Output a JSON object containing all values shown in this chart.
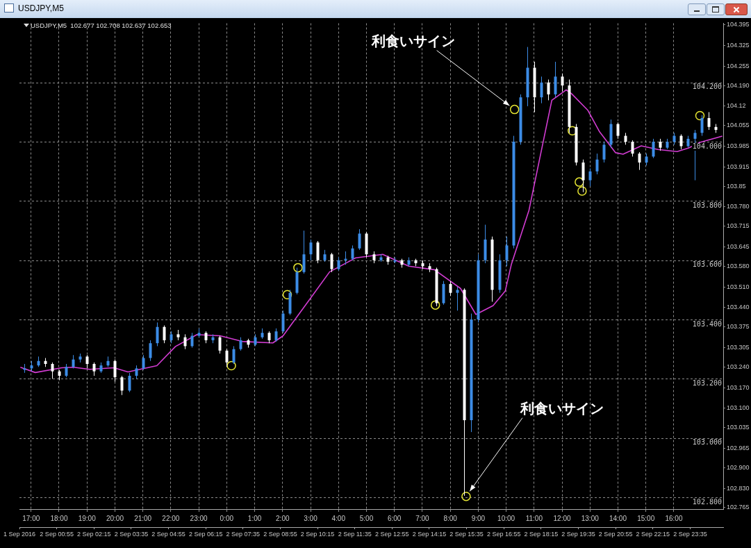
{
  "chart_data": {
    "type": "candlestick",
    "title": "USDJPY,M5",
    "subtitle": "USDJPY,M5  102.677 102.708 102.637 102.653",
    "xlim": [
      "2016-09-01T23:35",
      "2016-09-03T00:46"
    ],
    "xticks": [
      {
        "value": "2016-09-01T23:35",
        "label": "1 Sep 2016"
      },
      {
        "value": "2016-09-02T00:55",
        "label": "2 Sep 00:55"
      },
      {
        "value": "2016-09-02T02:15",
        "label": "2 Sep 02:15"
      },
      {
        "value": "2016-09-02T03:35",
        "label": "2 Sep 03:35"
      },
      {
        "value": "2016-09-02T04:55",
        "label": "2 Sep 04:55"
      },
      {
        "value": "2016-09-02T06:15",
        "label": "2 Sep 06:15"
      },
      {
        "value": "2016-09-02T07:35",
        "label": "2 Sep 07:35"
      },
      {
        "value": "2016-09-02T08:55",
        "label": "2 Sep 08:55"
      },
      {
        "value": "2016-09-02T10:15",
        "label": "2 Sep 10:15"
      },
      {
        "value": "2016-09-02T11:35",
        "label": "2 Sep 11:35"
      },
      {
        "value": "2016-09-02T12:55",
        "label": "2 Sep 12:55"
      },
      {
        "value": "2016-09-02T14:15",
        "label": "2 Sep 14:15"
      },
      {
        "value": "2016-09-02T15:35",
        "label": "2 Sep 15:35"
      },
      {
        "value": "2016-09-02T16:55",
        "label": "2 Sep 16:55"
      },
      {
        "value": "2016-09-02T18:15",
        "label": "2 Sep 18:15"
      },
      {
        "value": "2016-09-02T19:35",
        "label": "2 Sep 19:35"
      },
      {
        "value": "2016-09-02T20:55",
        "label": "2 Sep 20:55"
      },
      {
        "value": "2016-09-02T22:15",
        "label": "2 Sep 22:15"
      },
      {
        "value": "2016-09-02T23:35",
        "label": "2 Sep 23:35"
      }
    ],
    "x2lim": [
      "2016-09-01T16:35",
      "2016-09-02T17:46"
    ],
    "x2ticks": [
      {
        "value": "2016-09-01T17:00",
        "label": "17:00"
      },
      {
        "value": "2016-09-01T18:00",
        "label": "18:00"
      },
      {
        "value": "2016-09-01T19:00",
        "label": "19:00"
      },
      {
        "value": "2016-09-01T20:00",
        "label": "20:00"
      },
      {
        "value": "2016-09-01T21:00",
        "label": "21:00"
      },
      {
        "value": "2016-09-01T22:00",
        "label": "22:00"
      },
      {
        "value": "2016-09-01T23:00",
        "label": "23:00"
      },
      {
        "value": "2016-09-02T00:00",
        "label": "0:00"
      },
      {
        "value": "2016-09-02T01:00",
        "label": "1:00"
      },
      {
        "value": "2016-09-02T02:00",
        "label": "2:00"
      },
      {
        "value": "2016-09-02T03:00",
        "label": "3:00"
      },
      {
        "value": "2016-09-02T04:00",
        "label": "4:00"
      },
      {
        "value": "2016-09-02T05:00",
        "label": "5:00"
      },
      {
        "value": "2016-09-02T06:00",
        "label": "6:00"
      },
      {
        "value": "2016-09-02T07:00",
        "label": "7:00"
      },
      {
        "value": "2016-09-02T08:00",
        "label": "8:00"
      },
      {
        "value": "2016-09-02T09:00",
        "label": "9:00"
      },
      {
        "value": "2016-09-02T10:00",
        "label": "10:00"
      },
      {
        "value": "2016-09-02T11:00",
        "label": "11:00"
      },
      {
        "value": "2016-09-02T12:00",
        "label": "12:00"
      },
      {
        "value": "2016-09-02T13:00",
        "label": "13:00"
      },
      {
        "value": "2016-09-02T14:00",
        "label": "14:00"
      },
      {
        "value": "2016-09-02T15:00",
        "label": "15:00"
      },
      {
        "value": "2016-09-02T16:00",
        "label": "16:00"
      }
    ],
    "ylim": [
      102.76,
      104.4
    ],
    "yticks": [
      104.395,
      104.325,
      104.255,
      {
        "value": 104.19,
        "label": "104.190"
      },
      104.12,
      104.055,
      103.985,
      103.915,
      103.85,
      {
        "value": 103.78,
        "label": "103.780"
      },
      103.715,
      103.645,
      {
        "value": 103.58,
        "label": "103.580"
      },
      {
        "value": 103.51,
        "label": "103.510"
      },
      {
        "value": 103.44,
        "label": "103.440"
      },
      103.375,
      103.305,
      {
        "value": 103.24,
        "label": "103.240"
      },
      {
        "value": 103.17,
        "label": "103.170"
      },
      {
        "value": 103.1,
        "label": "103.100"
      },
      103.035,
      102.965,
      {
        "value": 102.9,
        "label": "102.900"
      },
      {
        "value": 102.83,
        "label": "102.830"
      },
      102.765
    ],
    "grid": "x",
    "ref_lines": [
      {
        "axis": "y",
        "value": 104.2,
        "label": "104.200",
        "color": "#8c8c8c",
        "line_style": "dashed"
      },
      {
        "axis": "y",
        "value": 104.0,
        "label": "104.000",
        "color": "#8c8c8c",
        "line_style": "dashed"
      },
      {
        "axis": "y",
        "value": 103.8,
        "label": "103.800",
        "color": "#8c8c8c",
        "line_style": "dashed"
      },
      {
        "axis": "y",
        "value": 103.6,
        "label": "103.600",
        "color": "#8c8c8c",
        "line_style": "dashed"
      },
      {
        "axis": "y",
        "value": 103.4,
        "label": "103.400",
        "color": "#8c8c8c",
        "line_style": "dashed"
      },
      {
        "axis": "y",
        "value": 103.2,
        "label": "103.200",
        "color": "#8c8c8c",
        "line_style": "dashed"
      },
      {
        "axis": "y",
        "value": 103.0,
        "label": "103.000",
        "color": "#8c8c8c",
        "line_style": "dashed"
      },
      {
        "axis": "y",
        "value": 102.8,
        "label": "102.800",
        "color": "#8c8c8c",
        "line_style": "dashed"
      }
    ],
    "annotations": [
      {
        "text": "利食いサイン",
        "x": "2016-09-02T17:18",
        "y": 104.109
      },
      {
        "text": "利食いサイン",
        "x": "2016-09-02T15:34",
        "y": 102.803
      }
    ],
    "series": [
      {
        "type": "line",
        "color": "#d23cd2",
        "line_style": "solid",
        "x": [
          "2016-09-01T23:37",
          "2016-09-02T00:09",
          "2016-09-02T01:06",
          "2016-09-02T01:31",
          "2016-09-02T02:06",
          "2016-09-02T02:58",
          "2016-09-02T03:28",
          "2016-09-02T04:30",
          "2016-09-02T05:10",
          "2016-09-02T05:56",
          "2016-09-02T06:46",
          "2016-09-02T07:33",
          "2016-09-02T08:39",
          "2016-09-02T09:01",
          "2016-09-02T09:59",
          "2016-09-02T10:41",
          "2016-09-02T11:37",
          "2016-09-02T12:35",
          "2016-09-02T13:31",
          "2016-09-02T14:26",
          "2016-09-02T15:22",
          "2016-09-02T15:55",
          "2016-09-02T16:32",
          "2016-09-02T16:58",
          "2016-09-02T17:11",
          "2016-09-02T17:49",
          "2016-09-02T18:38",
          "2016-09-02T19:09",
          "2016-09-02T19:20",
          "2016-09-02T19:55",
          "2016-09-02T20:20",
          "2016-09-02T20:55",
          "2016-09-02T21:11",
          "2016-09-02T21:50",
          "2016-09-02T22:26",
          "2016-09-02T23:07",
          "2016-09-02T23:32",
          "2016-09-02T23:56",
          "2016-09-03T00:44"
        ],
        "values": [
          103.239,
          103.221,
          103.237,
          103.239,
          103.232,
          103.237,
          103.223,
          103.244,
          103.309,
          103.349,
          103.345,
          103.326,
          103.321,
          103.345,
          103.47,
          103.561,
          103.608,
          103.62,
          103.58,
          103.568,
          103.505,
          103.417,
          103.447,
          103.496,
          103.585,
          103.769,
          104.14,
          104.175,
          104.163,
          104.107,
          104.035,
          103.963,
          103.958,
          103.986,
          103.974,
          103.967,
          103.979,
          103.998,
          104.019
        ]
      },
      {
        "type": "scatter",
        "color": "#e6e632",
        "marker": "circle",
        "x": [
          "2016-09-02T07:10",
          "2016-09-02T09:10",
          "2016-09-02T09:33",
          "2016-09-02T14:28",
          "2016-09-02T15:34",
          "2016-09-02T17:18",
          "2016-09-02T19:22",
          "2016-09-02T19:37",
          "2016-09-02T19:43",
          "2016-09-02T23:56"
        ],
        "values": [
          103.244,
          103.484,
          103.575,
          103.449,
          102.803,
          104.109,
          104.037,
          103.864,
          103.834,
          104.088
        ]
      },
      {
        "type": "candlestick",
        "color": "#3c8ce6",
        "x": [
          "2016-09-01T23:45",
          "2016-09-02T00:00",
          "2016-09-02T00:15",
          "2016-09-02T01:15",
          "2016-09-02T01:30",
          "2016-09-02T01:45",
          "2016-09-02T02:30",
          "2016-09-02T02:45",
          "2016-09-02T03:30",
          "2016-09-02T03:45",
          "2016-09-02T04:00",
          "2016-09-02T04:15",
          "2016-09-02T04:30",
          "2016-09-02T05:00",
          "2016-09-02T05:45",
          "2016-09-02T06:00",
          "2016-09-02T06:30",
          "2016-09-02T07:15",
          "2016-09-02T07:30",
          "2016-09-02T08:00",
          "2016-09-02T08:15",
          "2016-09-02T08:45",
          "2016-09-02T09:00",
          "2016-09-02T09:15",
          "2016-09-02T09:30",
          "2016-09-02T09:45",
          "2016-09-02T10:00",
          "2016-09-02T10:30",
          "2016-09-02T11:00",
          "2016-09-02T11:15",
          "2016-09-02T11:30",
          "2016-09-02T11:45",
          "2016-09-02T12:30",
          "2016-09-02T13:00",
          "2016-09-02T13:30",
          "2016-09-02T14:45",
          "2016-09-02T15:15",
          "2016-09-02T15:45",
          "2016-09-02T16:00",
          "2016-09-02T16:15",
          "2016-09-02T16:45",
          "2016-09-02T17:00",
          "2016-09-02T17:15",
          "2016-09-02T17:30",
          "2016-09-02T17:45",
          "2016-09-02T18:15",
          "2016-09-02T18:45",
          "2016-09-02T20:00",
          "2016-09-02T20:15",
          "2016-09-02T20:30",
          "2016-09-02T20:45",
          "2016-09-02T22:00",
          "2016-09-02T22:15",
          "2016-09-02T22:45",
          "2016-09-02T23:00",
          "2016-09-02T23:30",
          "2016-09-02T23:45",
          "2016-09-03T00:00"
        ],
        "ohlc": [
          [
            103.23,
            103.25,
            103.22,
            103.235
          ],
          [
            103.235,
            103.26,
            103.225,
            103.245
          ],
          [
            103.245,
            103.275,
            103.24,
            103.26
          ],
          [
            103.21,
            103.25,
            103.205,
            103.24
          ],
          [
            103.24,
            103.28,
            103.235,
            103.265
          ],
          [
            103.265,
            103.285,
            103.255,
            103.275
          ],
          [
            103.225,
            103.255,
            103.22,
            103.245
          ],
          [
            103.245,
            103.275,
            103.24,
            103.26
          ],
          [
            103.16,
            103.22,
            103.155,
            103.21
          ],
          [
            103.21,
            103.245,
            103.2,
            103.235
          ],
          [
            103.235,
            103.28,
            103.23,
            103.27
          ],
          [
            103.27,
            103.33,
            103.26,
            103.32
          ],
          [
            103.32,
            103.39,
            103.31,
            103.375
          ],
          [
            103.33,
            103.36,
            103.32,
            103.35
          ],
          [
            103.31,
            103.355,
            103.305,
            103.345
          ],
          [
            103.345,
            103.37,
            103.34,
            103.355
          ],
          [
            103.33,
            103.35,
            103.32,
            103.34
          ],
          [
            103.255,
            103.31,
            103.25,
            103.3
          ],
          [
            103.3,
            103.34,
            103.295,
            103.33
          ],
          [
            103.315,
            103.35,
            103.31,
            103.34
          ],
          [
            103.34,
            103.37,
            103.335,
            103.355
          ],
          [
            103.33,
            103.37,
            103.325,
            103.36
          ],
          [
            103.36,
            103.43,
            103.355,
            103.42
          ],
          [
            103.42,
            103.5,
            103.415,
            103.49
          ],
          [
            103.49,
            103.575,
            103.485,
            103.56
          ],
          [
            103.56,
            103.7,
            103.555,
            103.62
          ],
          [
            103.62,
            103.67,
            103.6,
            103.66
          ],
          [
            103.6,
            103.635,
            103.595,
            103.62
          ],
          [
            103.57,
            103.61,
            103.565,
            103.6
          ],
          [
            103.6,
            103.63,
            103.585,
            103.605
          ],
          [
            103.605,
            103.65,
            103.6,
            103.64
          ],
          [
            103.64,
            103.705,
            103.635,
            103.69
          ],
          [
            103.6,
            103.62,
            103.595,
            103.61
          ],
          [
            103.595,
            103.61,
            103.59,
            103.6
          ],
          [
            103.585,
            103.61,
            103.58,
            103.6
          ],
          [
            103.455,
            103.53,
            103.45,
            103.52
          ],
          [
            103.49,
            103.51,
            103.43,
            103.5
          ],
          [
            103.06,
            103.42,
            103.02,
            103.4
          ],
          [
            103.4,
            103.62,
            103.39,
            103.6
          ],
          [
            103.6,
            103.72,
            103.59,
            103.67
          ],
          [
            103.5,
            103.62,
            103.49,
            103.6
          ],
          [
            103.6,
            103.68,
            103.58,
            103.65
          ],
          [
            103.65,
            104.02,
            103.64,
            104.0
          ],
          [
            104.0,
            104.16,
            103.99,
            104.15
          ],
          [
            104.15,
            104.32,
            104.12,
            104.25
          ],
          [
            104.15,
            104.22,
            104.13,
            104.2
          ],
          [
            104.16,
            104.27,
            104.15,
            104.22
          ],
          [
            103.87,
            103.91,
            103.85,
            103.9
          ],
          [
            103.9,
            103.96,
            103.89,
            103.94
          ],
          [
            103.94,
            104.0,
            103.93,
            103.99
          ],
          [
            103.99,
            104.075,
            103.98,
            104.06
          ],
          [
            103.93,
            103.96,
            103.92,
            103.95
          ],
          [
            103.95,
            104.01,
            103.945,
            104.0
          ],
          [
            103.98,
            104.01,
            103.975,
            104.0
          ],
          [
            104.0,
            104.03,
            103.99,
            104.02
          ],
          [
            103.985,
            104.02,
            103.98,
            104.01
          ],
          [
            104.01,
            104.04,
            103.87,
            104.03
          ],
          [
            104.03,
            104.09,
            104.02,
            104.08
          ]
        ]
      },
      {
        "type": "candlestick",
        "color": "#ffffff",
        "x": [
          "2016-09-02T00:30",
          "2016-09-02T00:45",
          "2016-09-02T01:00",
          "2016-09-02T02:00",
          "2016-09-02T02:15",
          "2016-09-02T03:00",
          "2016-09-02T03:15",
          "2016-09-02T04:45",
          "2016-09-02T05:15",
          "2016-09-02T05:30",
          "2016-09-02T06:15",
          "2016-09-02T06:45",
          "2016-09-02T07:00",
          "2016-09-02T07:45",
          "2016-09-02T08:30",
          "2016-09-02T10:15",
          "2016-09-02T10:45",
          "2016-09-02T12:00",
          "2016-09-02T12:15",
          "2016-09-02T12:45",
          "2016-09-02T13:15",
          "2016-09-02T13:45",
          "2016-09-02T14:00",
          "2016-09-02T14:15",
          "2016-09-02T14:30",
          "2016-09-02T15:00",
          "2016-09-02T15:30",
          "2016-09-02T16:30",
          "2016-09-02T18:00",
          "2016-09-02T18:30",
          "2016-09-02T19:00",
          "2016-09-02T19:15",
          "2016-09-02T19:30",
          "2016-09-02T19:45",
          "2016-09-02T21:00",
          "2016-09-02T21:15",
          "2016-09-02T21:30",
          "2016-09-02T21:45",
          "2016-09-02T22:30",
          "2016-09-02T23:15",
          "2016-09-03T00:15",
          "2016-09-03T00:30"
        ],
        "ohlc": [
          [
            103.26,
            103.27,
            103.24,
            103.25
          ],
          [
            103.25,
            103.255,
            103.2,
            103.225
          ],
          [
            103.225,
            103.23,
            103.195,
            103.21
          ],
          [
            103.275,
            103.28,
            103.235,
            103.25
          ],
          [
            103.25,
            103.255,
            103.21,
            103.225
          ],
          [
            103.26,
            103.265,
            103.19,
            103.205
          ],
          [
            103.205,
            103.21,
            103.145,
            103.16
          ],
          [
            103.375,
            103.38,
            103.32,
            103.33
          ],
          [
            103.35,
            103.365,
            103.33,
            103.34
          ],
          [
            103.34,
            103.35,
            103.3,
            103.31
          ],
          [
            103.355,
            103.36,
            103.32,
            103.33
          ],
          [
            103.34,
            103.345,
            103.285,
            103.295
          ],
          [
            103.295,
            103.3,
            103.24,
            103.255
          ],
          [
            103.33,
            103.335,
            103.305,
            103.315
          ],
          [
            103.355,
            103.36,
            103.32,
            103.33
          ],
          [
            103.66,
            103.665,
            103.59,
            103.6
          ],
          [
            103.62,
            103.625,
            103.56,
            103.57
          ],
          [
            103.69,
            103.695,
            103.61,
            103.62
          ],
          [
            103.62,
            103.63,
            103.59,
            103.6
          ],
          [
            103.61,
            103.615,
            103.585,
            103.595
          ],
          [
            103.6,
            103.605,
            103.575,
            103.585
          ],
          [
            103.6,
            103.605,
            103.58,
            103.59
          ],
          [
            103.59,
            103.6,
            103.57,
            103.58
          ],
          [
            103.58,
            103.59,
            103.56,
            103.57
          ],
          [
            103.57,
            103.575,
            103.445,
            103.455
          ],
          [
            103.52,
            103.53,
            103.48,
            103.49
          ],
          [
            103.5,
            103.505,
            102.805,
            103.06
          ],
          [
            103.67,
            103.68,
            103.46,
            103.5
          ],
          [
            104.25,
            104.27,
            104.1,
            104.15
          ],
          [
            104.2,
            104.21,
            104.14,
            104.16
          ],
          [
            104.22,
            104.23,
            104.17,
            104.19
          ],
          [
            104.19,
            104.21,
            104.03,
            104.05
          ],
          [
            104.05,
            104.06,
            103.92,
            103.93
          ],
          [
            103.93,
            103.94,
            103.83,
            103.87
          ],
          [
            104.06,
            104.065,
            104.01,
            104.02
          ],
          [
            104.02,
            104.03,
            103.99,
            104.0
          ],
          [
            104.0,
            104.005,
            103.95,
            103.96
          ],
          [
            103.96,
            103.965,
            103.905,
            103.93
          ],
          [
            104.0,
            104.01,
            103.97,
            103.98
          ],
          [
            104.02,
            104.025,
            103.975,
            103.985
          ],
          [
            104.08,
            104.1,
            104.04,
            104.05
          ],
          [
            104.05,
            104.06,
            104.03,
            104.04
          ]
        ]
      }
    ]
  }
}
